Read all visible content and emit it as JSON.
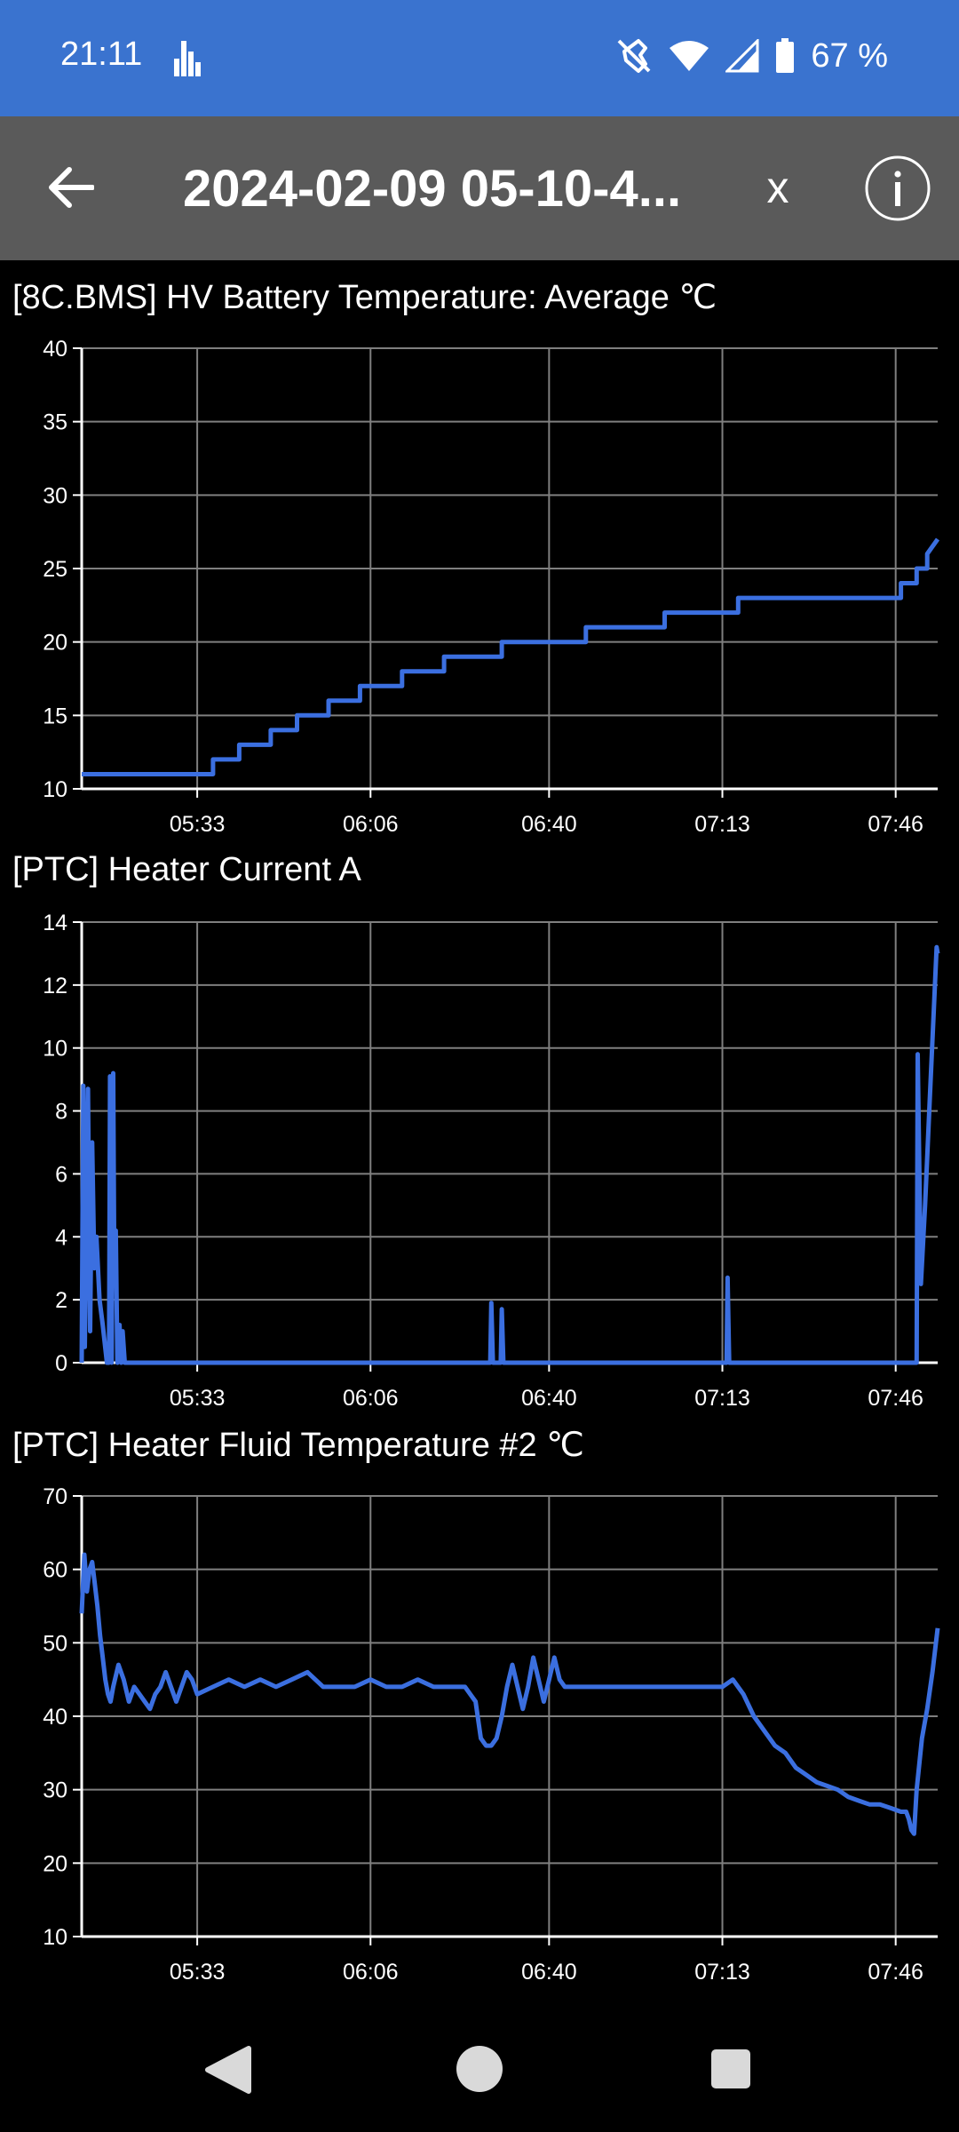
{
  "status_bar": {
    "time": "21:11",
    "battery_text": "67 %",
    "icons": [
      "equalizer-icon",
      "mute-icon",
      "wifi-icon",
      "signal-icon",
      "battery-icon"
    ]
  },
  "app_bar": {
    "title": "2024-02-09 05-10-4...",
    "close_label": "x",
    "icons": [
      "back-arrow-icon",
      "info-icon"
    ]
  },
  "colors": {
    "status_bar": "#3a73cf",
    "app_bar": "#5a5a5a",
    "line": "#3b6fe0",
    "grid": "#7f7f7f",
    "background": "#000000"
  },
  "charts": [
    {
      "title": "[8C.BMS] HV Battery Temperature: Average  ℃",
      "y_ticks": [
        "10",
        "15",
        "20",
        "25",
        "30",
        "35",
        "40"
      ],
      "x_ticks": [
        "05:33",
        "06:06",
        "06:40",
        "07:13",
        "07:46"
      ]
    },
    {
      "title": "[PTC] Heater Current  A",
      "y_ticks": [
        "0",
        "2",
        "4",
        "6",
        "8",
        "10",
        "12",
        "14"
      ],
      "x_ticks": [
        "05:33",
        "06:06",
        "06:40",
        "07:13",
        "07:46"
      ]
    },
    {
      "title": "[PTC] Heater Fluid Temperature #2  ℃",
      "y_ticks": [
        "10",
        "20",
        "30",
        "40",
        "50",
        "60",
        "70"
      ],
      "x_ticks": [
        "05:33",
        "06:06",
        "06:40",
        "07:13",
        "07:46"
      ]
    }
  ],
  "chart_data": [
    {
      "type": "line",
      "title": "[8C.BMS] HV Battery Temperature: Average  ℃",
      "ylabel": "℃",
      "ylim": [
        10,
        40
      ],
      "x_unit": "minutes since 05:33",
      "xlim": [
        -22,
        141
      ],
      "step": true,
      "series": [
        {
          "x": [
            -22,
            3,
            3,
            8,
            8,
            14,
            14,
            19,
            19,
            25,
            25,
            31,
            31,
            39,
            39,
            47,
            47,
            58,
            58,
            74,
            74,
            89,
            89,
            103,
            103,
            134,
            134,
            137,
            137,
            139,
            139,
            141
          ],
          "y": [
            11,
            11,
            12,
            12,
            13,
            13,
            14,
            14,
            15,
            15,
            16,
            16,
            17,
            17,
            18,
            18,
            19,
            19,
            20,
            20,
            21,
            21,
            22,
            22,
            23,
            23,
            24,
            24,
            25,
            25,
            26,
            27
          ]
        }
      ]
    },
    {
      "type": "line",
      "title": "[PTC] Heater Current  A",
      "ylabel": "A",
      "ylim": [
        0,
        14
      ],
      "xlim": [
        -22,
        141
      ],
      "series": [
        {
          "x": [
            -22,
            -21.7,
            -21.4,
            -20.8,
            -20.4,
            -20,
            -19.6,
            -19.2,
            -18.6,
            -18,
            -17.2,
            -16.8,
            -16.6,
            -16.3,
            -16,
            -15.8,
            -15.5,
            -15.2,
            -14.8,
            -14.5,
            -14.2,
            -13.8,
            -13.5,
            -13,
            -12.5,
            55.8,
            56,
            56.3,
            56.6,
            57.8,
            58,
            58.3,
            58.6,
            100.8,
            101,
            101.3,
            101.6,
            137,
            137.2,
            137.8,
            138.6,
            139.4,
            140.2,
            140.8,
            141
          ],
          "y": [
            0,
            8.8,
            0.5,
            8.7,
            1,
            7,
            3,
            4,
            2,
            1.2,
            0,
            0,
            9.1,
            0,
            9.2,
            3,
            4.2,
            0,
            1.2,
            0,
            1,
            0,
            0,
            0,
            0,
            0,
            1.9,
            0,
            0,
            0,
            1.7,
            0,
            0,
            0,
            2.7,
            0,
            0,
            0,
            9.8,
            2.5,
            5,
            8,
            11,
            13.2,
            13
          ]
        }
      ]
    },
    {
      "type": "line",
      "title": "[PTC] Heater Fluid Temperature #2  ℃",
      "ylabel": "℃",
      "ylim": [
        10,
        70
      ],
      "xlim": [
        -22,
        141
      ],
      "series": [
        {
          "x": [
            -22,
            -21.5,
            -21,
            -20.5,
            -20,
            -19.5,
            -19,
            -18.5,
            -18,
            -17.5,
            -17,
            -16.5,
            -16,
            -15,
            -14,
            -13,
            -12,
            -11,
            -10,
            -9,
            -8,
            -7,
            -6,
            -5,
            -4,
            -3,
            -2,
            -1,
            0,
            3,
            6,
            9,
            12,
            15,
            18,
            21,
            24,
            27,
            30,
            33,
            36,
            39,
            42,
            45,
            48,
            51,
            52,
            53,
            54,
            55,
            56,
            57,
            58,
            59,
            60,
            61,
            62,
            63,
            64,
            65,
            66,
            67,
            68,
            69,
            70,
            71,
            72,
            73,
            75,
            80,
            85,
            90,
            95,
            100,
            102,
            104,
            106,
            108,
            110,
            112,
            114,
            116,
            118,
            120,
            122,
            124,
            126,
            128,
            130,
            132,
            134,
            135,
            135.5,
            136,
            136.5,
            137,
            138,
            139,
            140,
            141
          ],
          "y": [
            54,
            62,
            57,
            60,
            61,
            58,
            55,
            51,
            48,
            45,
            43,
            42,
            44,
            47,
            45,
            42,
            44,
            43,
            42,
            41,
            43,
            44,
            46,
            44,
            42,
            44,
            46,
            45,
            43,
            44,
            45,
            44,
            45,
            44,
            45,
            46,
            44,
            44,
            44,
            45,
            44,
            44,
            45,
            44,
            44,
            44,
            43,
            42,
            37,
            36,
            36,
            37,
            40,
            44,
            47,
            44,
            41,
            44,
            48,
            45,
            42,
            45,
            48,
            45,
            44,
            44,
            44,
            44,
            44,
            44,
            44,
            44,
            44,
            44,
            45,
            43,
            40,
            38,
            36,
            35,
            33,
            32,
            31,
            30.5,
            30,
            29,
            28.5,
            28,
            28,
            27.5,
            27,
            27,
            26,
            24.5,
            24,
            30,
            37,
            41,
            46,
            52
          ]
        }
      ]
    }
  ]
}
